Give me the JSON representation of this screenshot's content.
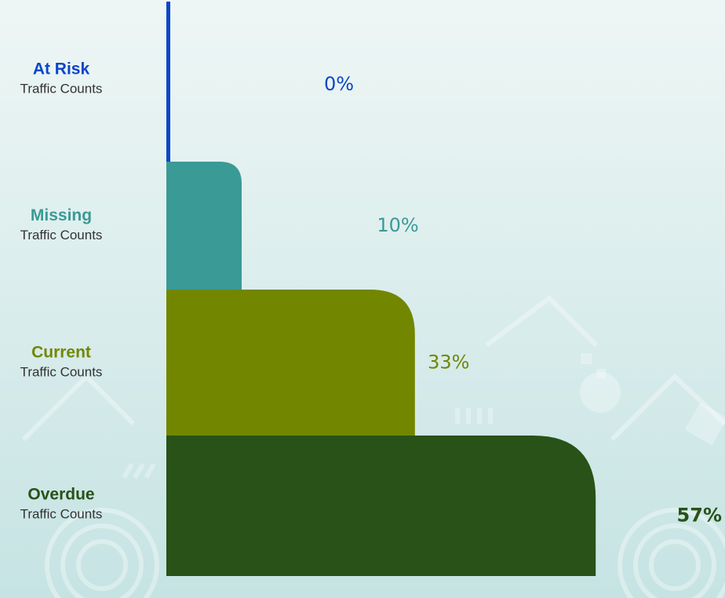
{
  "chart_data": {
    "type": "bar",
    "orientation": "horizontal",
    "categories": [
      "At Risk",
      "Missing",
      "Current",
      "Overdue"
    ],
    "subtitle_text": "Traffic Counts",
    "values": [
      0,
      10,
      33,
      57
    ],
    "value_labels": [
      "0%",
      "10%",
      "33%",
      "57%"
    ],
    "unit": "%",
    "xlim": [
      0,
      100
    ],
    "colors": [
      "#0a46c8",
      "#3a9a96",
      "#728600",
      "#285217"
    ],
    "label_colors": [
      "#0a46c8",
      "#3a9a96",
      "#728600",
      "#285217"
    ],
    "highlighted_label": "Overdue",
    "grid": false,
    "legend": "none"
  }
}
